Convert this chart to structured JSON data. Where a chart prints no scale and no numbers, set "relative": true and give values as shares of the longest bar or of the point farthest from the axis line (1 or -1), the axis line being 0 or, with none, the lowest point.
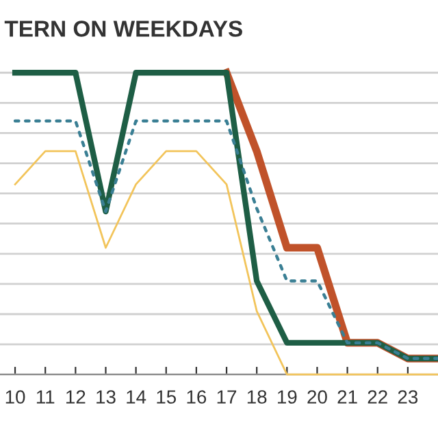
{
  "chart_data": {
    "type": "line",
    "title": "TERN ON WEEKDAYS",
    "relative": true,
    "grid": "y",
    "x": [
      10,
      11,
      12,
      13,
      14,
      15,
      16,
      17,
      18,
      19,
      20,
      21,
      22,
      23,
      24
    ],
    "xlim": [
      9.5,
      24
    ],
    "xticks": [
      10,
      11,
      12,
      13,
      14,
      15,
      16,
      17,
      18,
      19,
      20,
      21,
      22,
      23
    ],
    "series": [
      {
        "color": "#f2c45a",
        "line_style": "solid",
        "values": [
          0.63,
          0.74,
          0.74,
          0.42,
          0.63,
          0.74,
          0.74,
          0.63,
          0.21,
          0,
          0,
          0,
          0,
          0,
          0
        ]
      },
      {
        "color": "#c0522a",
        "line_style": "solid",
        "values": [
          null,
          null,
          null,
          null,
          null,
          null,
          null,
          1,
          0.74,
          0.42,
          0.42,
          0.105,
          0.105,
          0.053,
          0.053
        ]
      },
      {
        "color": "#1e5e45",
        "line_style": "solid",
        "values": [
          1,
          1,
          1,
          0.54,
          1,
          1,
          1,
          1,
          0.31,
          0.105,
          0.105,
          0.105,
          0.105,
          0.053,
          0.053
        ]
      },
      {
        "color": "#3a7f94",
        "line_style": "dotted",
        "values": [
          0.84,
          0.84,
          0.84,
          0.54,
          0.84,
          0.84,
          0.84,
          0.84,
          0.55,
          0.31,
          0.31,
          0.105,
          0.105,
          0.053,
          0.053
        ]
      }
    ]
  }
}
